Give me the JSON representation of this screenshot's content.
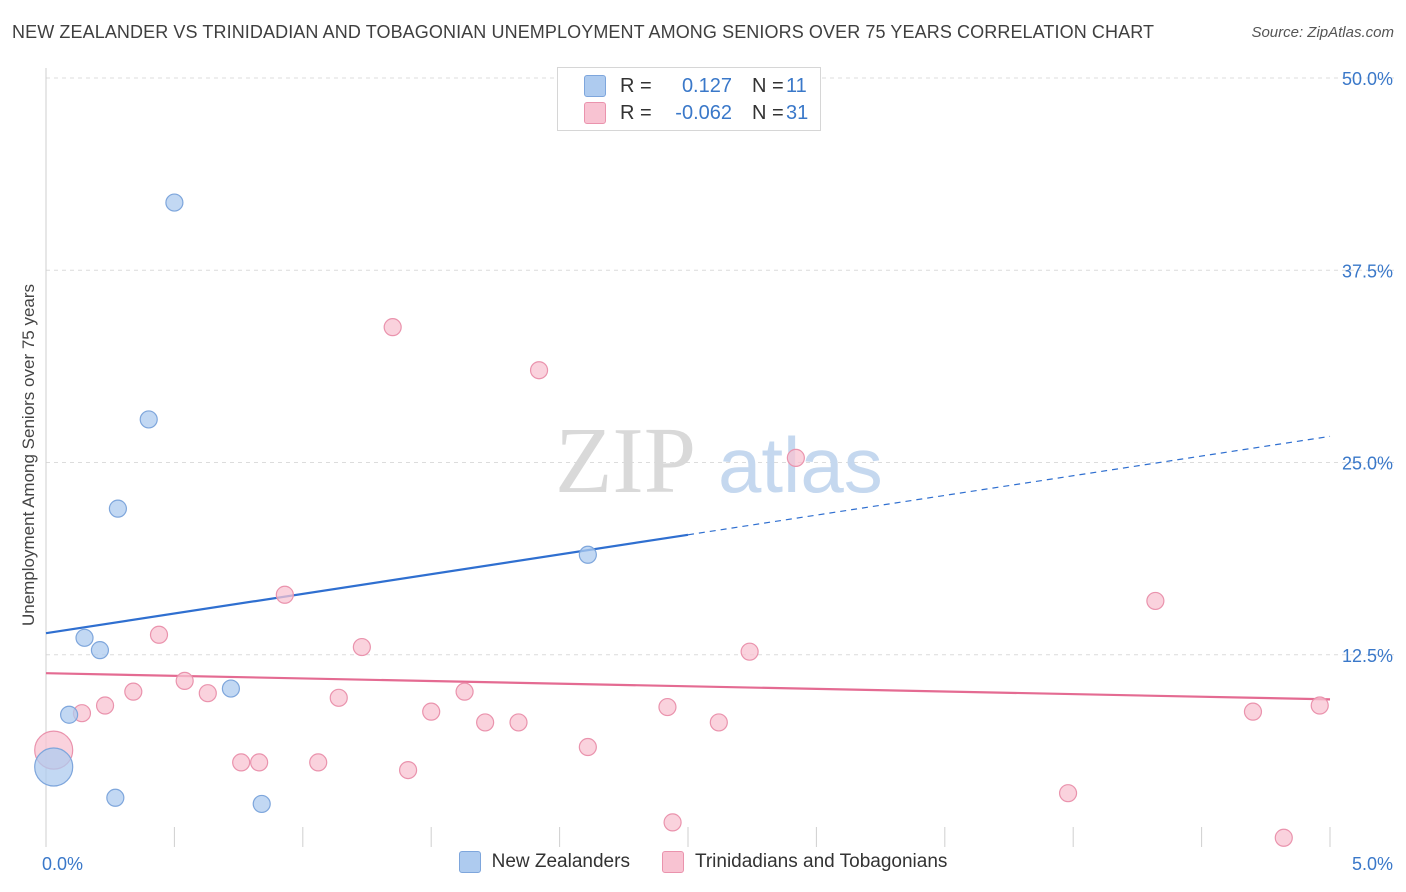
{
  "title": "NEW ZEALANDER VS TRINIDADIAN AND TOBAGONIAN UNEMPLOYMENT AMONG SENIORS OVER 75 YEARS CORRELATION CHART",
  "source": "Source: ZipAtlas.com",
  "watermark": {
    "zip": "ZIP",
    "atlas": "atlas"
  },
  "legend": {
    "rows": [
      {
        "r_label": "R =",
        "r_value": "0.127",
        "n_label": "N =",
        "n_value": "11",
        "color": "#aecbef",
        "border": "#7ea6dc"
      },
      {
        "r_label": "R =",
        "r_value": "-0.062",
        "n_label": "N =",
        "n_value": "31",
        "color": "#f8c3d2",
        "border": "#ea93ad"
      }
    ]
  },
  "bottom_legend": [
    "New Zealanders",
    "Trinidadians and Tobagonians"
  ],
  "chart_data": {
    "type": "scatter",
    "title": "NEW ZEALANDER VS TRINIDADIAN AND TOBAGONIAN UNEMPLOYMENT AMONG SENIORS OVER 75 YEARS CORRELATION CHART",
    "xlabel": "",
    "ylabel": "Unemployment Among Seniors over 75 years",
    "xlim": [
      0,
      5.0
    ],
    "ylim": [
      0,
      50.0
    ],
    "x_tick_labels": [
      "0.0%",
      "5.0%"
    ],
    "y_ticks": [
      12.5,
      25.0,
      37.5,
      50.0
    ],
    "y_tick_labels": [
      "12.5%",
      "25.0%",
      "37.5%",
      "50.0%"
    ],
    "grid": true,
    "series": [
      {
        "name": "New Zealanders",
        "color": "#aecbef",
        "stroke": "#7ea6dc",
        "line_color": "#2f6fd0",
        "points": [
          {
            "x": 0.03,
            "y": 5.2,
            "size": "large"
          },
          {
            "x": 0.09,
            "y": 8.6
          },
          {
            "x": 0.15,
            "y": 13.6
          },
          {
            "x": 0.21,
            "y": 12.8
          },
          {
            "x": 0.27,
            "y": 3.2
          },
          {
            "x": 0.28,
            "y": 22.0
          },
          {
            "x": 0.4,
            "y": 27.8
          },
          {
            "x": 0.5,
            "y": 41.9
          },
          {
            "x": 0.72,
            "y": 10.3
          },
          {
            "x": 0.84,
            "y": 2.8
          },
          {
            "x": 2.11,
            "y": 19.0
          }
        ],
        "trend": {
          "x0": 0.0,
          "y0": 13.9,
          "x1": 2.5,
          "y1": 20.3,
          "dash_x1": 5.0,
          "dash_y1": 26.7
        }
      },
      {
        "name": "Trinidadians and Tobagonians",
        "color": "#f8c3d2",
        "stroke": "#ea93ad",
        "line_color": "#e46b92",
        "points": [
          {
            "x": 0.03,
            "y": 6.3,
            "size": "large"
          },
          {
            "x": 0.14,
            "y": 8.7
          },
          {
            "x": 0.23,
            "y": 9.2
          },
          {
            "x": 0.34,
            "y": 10.1
          },
          {
            "x": 0.44,
            "y": 13.8
          },
          {
            "x": 0.54,
            "y": 10.8
          },
          {
            "x": 0.63,
            "y": 10.0
          },
          {
            "x": 0.76,
            "y": 5.5
          },
          {
            "x": 0.83,
            "y": 5.5
          },
          {
            "x": 0.93,
            "y": 16.4
          },
          {
            "x": 1.06,
            "y": 5.5
          },
          {
            "x": 1.14,
            "y": 9.7
          },
          {
            "x": 1.23,
            "y": 13.0
          },
          {
            "x": 1.35,
            "y": 33.8
          },
          {
            "x": 1.41,
            "y": 5.0
          },
          {
            "x": 1.5,
            "y": 8.8
          },
          {
            "x": 1.63,
            "y": 10.1
          },
          {
            "x": 1.71,
            "y": 8.1
          },
          {
            "x": 1.84,
            "y": 8.1
          },
          {
            "x": 1.92,
            "y": 31.0
          },
          {
            "x": 2.11,
            "y": 6.5
          },
          {
            "x": 2.42,
            "y": 9.1
          },
          {
            "x": 2.44,
            "y": 1.6
          },
          {
            "x": 2.62,
            "y": 8.1
          },
          {
            "x": 2.74,
            "y": 12.7
          },
          {
            "x": 2.92,
            "y": 25.3
          },
          {
            "x": 3.98,
            "y": 3.5
          },
          {
            "x": 4.32,
            "y": 16.0
          },
          {
            "x": 4.7,
            "y": 8.8
          },
          {
            "x": 4.82,
            "y": 0.6
          },
          {
            "x": 4.96,
            "y": 9.2
          }
        ],
        "trend": {
          "x0": 0.0,
          "y0": 11.3,
          "x1": 5.0,
          "y1": 9.6
        }
      }
    ]
  }
}
